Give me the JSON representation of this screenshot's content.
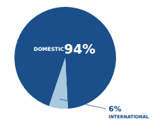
{
  "chart_data": {
    "type": "pie",
    "categories": [
      "DOMESTIC",
      "INTERNATIONAL"
    ],
    "values": [
      94,
      6
    ],
    "value_labels": [
      "94%",
      "6%"
    ],
    "colors": [
      "#1a4f8a",
      "#a8c8dc"
    ],
    "data_labels": true
  }
}
